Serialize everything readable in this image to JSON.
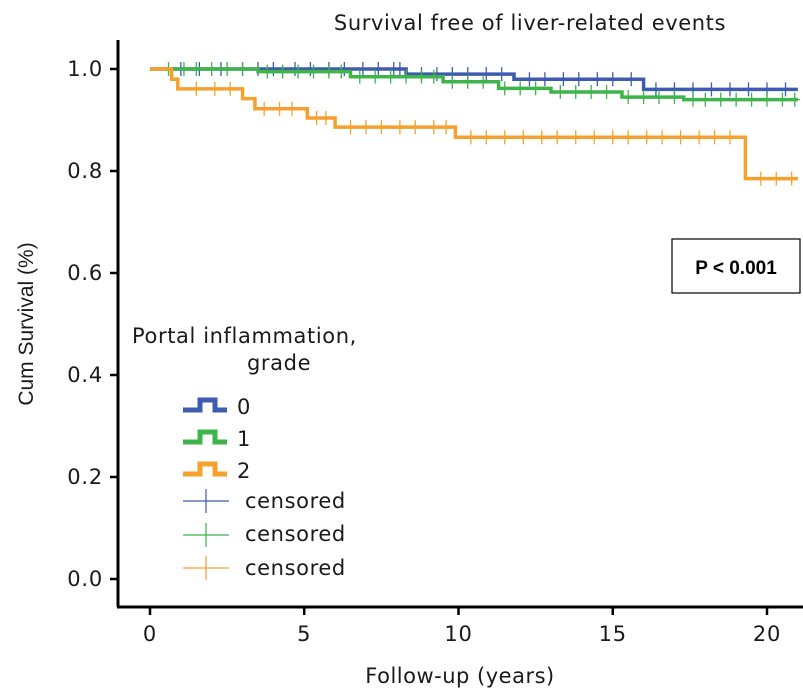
{
  "chart_data": {
    "type": "line",
    "subtype": "kaplan-meier",
    "title": "Survival free of liver-related events",
    "xlabel": "Follow-up (years)",
    "ylabel": "Cum Survival (%)",
    "xlim": [
      0,
      21
    ],
    "ylim": [
      0,
      1.05
    ],
    "x_ticks": [
      "0",
      "5",
      "10",
      "15",
      "20"
    ],
    "y_ticks": [
      "0.0",
      "0.2",
      "0.4",
      "0.6",
      "0.8",
      "1.0"
    ],
    "annotation": "P < 0.001",
    "legend": {
      "title_line1": "Portal inflammation,",
      "title_line2": "grade",
      "placement": "center-left"
    },
    "series": [
      {
        "name": "0",
        "color": "#3f5bb0",
        "steps": [
          [
            0,
            1.0
          ],
          [
            8.3,
            1.0
          ],
          [
            8.3,
            0.99
          ],
          [
            11.8,
            0.99
          ],
          [
            11.8,
            0.98
          ],
          [
            16,
            0.98
          ],
          [
            16,
            0.96
          ],
          [
            21,
            0.96
          ]
        ],
        "censored": [
          1.0,
          1.6,
          2.3,
          3.0,
          3.5,
          4.0,
          4.7,
          5.2,
          5.8,
          6.3,
          6.9,
          7.4,
          7.9,
          8.1,
          8.8,
          9.3,
          9.8,
          10.3,
          10.9,
          11.4,
          12.3,
          12.8,
          13.4,
          13.9,
          14.5,
          15.0,
          15.6,
          16.4,
          17.0,
          17.6,
          18.2,
          18.8,
          19.4,
          20.0,
          20.6
        ]
      },
      {
        "name": "1",
        "color": "#3eb44a",
        "steps": [
          [
            0,
            1.0
          ],
          [
            3.5,
            1.0
          ],
          [
            3.5,
            0.995
          ],
          [
            6.5,
            0.995
          ],
          [
            6.5,
            0.985
          ],
          [
            9.5,
            0.985
          ],
          [
            9.5,
            0.975
          ],
          [
            11.3,
            0.975
          ],
          [
            11.3,
            0.962
          ],
          [
            13,
            0.962
          ],
          [
            13,
            0.955
          ],
          [
            15.3,
            0.955
          ],
          [
            15.3,
            0.945
          ],
          [
            17.3,
            0.945
          ],
          [
            17.3,
            0.94
          ],
          [
            21,
            0.94
          ]
        ],
        "censored": [
          0.6,
          1.1,
          1.5,
          2.0,
          2.5,
          3.0,
          3.8,
          4.3,
          4.8,
          5.3,
          5.8,
          6.2,
          6.8,
          7.3,
          7.8,
          8.3,
          8.8,
          9.2,
          9.8,
          10.3,
          10.8,
          11.5,
          12.0,
          12.5,
          13.3,
          13.8,
          14.3,
          14.8,
          15.5,
          16.0,
          16.5,
          17.0,
          17.6,
          18.0,
          18.5,
          19.0,
          19.5,
          20.0,
          20.5,
          20.9
        ]
      },
      {
        "name": "2",
        "color": "#f5a12d",
        "steps": [
          [
            0,
            1.0
          ],
          [
            0.7,
            1.0
          ],
          [
            0.7,
            0.98
          ],
          [
            0.9,
            0.98
          ],
          [
            0.9,
            0.961
          ],
          [
            3.0,
            0.961
          ],
          [
            3.0,
            0.942
          ],
          [
            3.4,
            0.942
          ],
          [
            3.4,
            0.922
          ],
          [
            5.1,
            0.922
          ],
          [
            5.1,
            0.904
          ],
          [
            6.0,
            0.904
          ],
          [
            6.0,
            0.886
          ],
          [
            9.9,
            0.886
          ],
          [
            9.9,
            0.866
          ],
          [
            19.3,
            0.866
          ],
          [
            19.3,
            0.785
          ],
          [
            21,
            0.785
          ]
        ],
        "censored": [
          1.5,
          2.1,
          2.6,
          3.7,
          4.2,
          4.6,
          5.4,
          5.7,
          6.5,
          7.0,
          7.5,
          8.1,
          8.6,
          9.2,
          9.6,
          10.4,
          10.9,
          11.5,
          12.1,
          12.7,
          13.2,
          13.8,
          14.4,
          15.0,
          15.5,
          16.1,
          16.6,
          17.2,
          17.8,
          18.3,
          18.8,
          19.8,
          20.3,
          20.8
        ]
      }
    ],
    "censored_label": "censored"
  }
}
